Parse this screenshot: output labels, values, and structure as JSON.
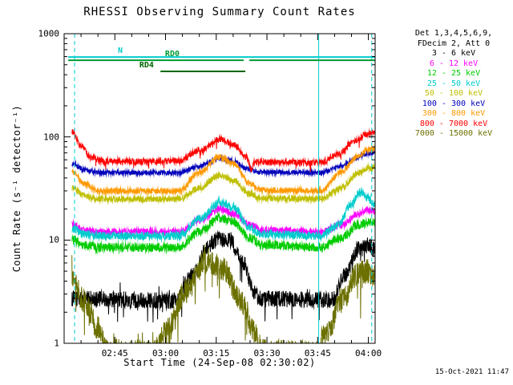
{
  "title": "RHESSI Observing Summary Count Rates",
  "timestamp": "15-Oct-2021 11:47",
  "x_axis": {
    "label": "Start Time (24-Sep-08 02:30:02)",
    "min_minutes": 0,
    "max_minutes": 92,
    "minor_tick_minutes": 5,
    "ticks": [
      {
        "t": 15,
        "label": "02:45"
      },
      {
        "t": 30,
        "label": "03:00"
      },
      {
        "t": 45,
        "label": "03:15"
      },
      {
        "t": 60,
        "label": "03:30"
      },
      {
        "t": 75,
        "label": "03:45"
      },
      {
        "t": 90,
        "label": "04:00"
      }
    ]
  },
  "y_axis": {
    "label": "Count Rate (s⁻¹ detector⁻¹)",
    "scale": "log",
    "min": 1,
    "max": 1000,
    "ticks": [
      {
        "v": 1,
        "label": "1"
      },
      {
        "v": 10,
        "label": "10"
      },
      {
        "v": 100,
        "label": "100"
      },
      {
        "v": 1000,
        "label": "1000"
      }
    ]
  },
  "legend": {
    "header_lines": [
      "Det 1,3,4,5,6,9,",
      "FDecim 2, Att 0"
    ],
    "entries": [
      {
        "label": "3 - 6 keV",
        "color": "#000000"
      },
      {
        "label": "6 - 12 keV",
        "color": "#ff00ff"
      },
      {
        "label": "12 - 25 keV",
        "color": "#00cc00"
      },
      {
        "label": "25 - 50 keV",
        "color": "#00cccc"
      },
      {
        "label": "50 - 100 keV",
        "color": "#bfbf00"
      },
      {
        "label": "100 - 300 keV",
        "color": "#0000bb"
      },
      {
        "label": "300 - 800 keV",
        "color": "#ff9900"
      },
      {
        "label": "800 - 7000 keV",
        "color": "#ff0000"
      },
      {
        "label": "7000 - 15000 keV",
        "color": "#6b7000"
      }
    ]
  },
  "overlays": {
    "flag_bars": [
      {
        "label": "N",
        "color": "#00cccc",
        "value": 594,
        "label_t": 16.6,
        "segments": [
          [
            1.2,
            92
          ]
        ]
      },
      {
        "label": "RD0",
        "color": "#009933",
        "value": 553,
        "label_t": 32,
        "segments": [
          [
            1.2,
            53.1
          ],
          [
            54.8,
            92
          ]
        ]
      },
      {
        "label": "RD4",
        "color": "#006600",
        "value": 431,
        "label_t": 24.4,
        "segments": [
          [
            28.5,
            53.6
          ]
        ]
      }
    ],
    "vlines": [
      {
        "t": 3.1,
        "style": "dashed",
        "color": "#00cccc"
      },
      {
        "t": 75.3,
        "style": "solid",
        "color": "#00cccc"
      },
      {
        "t": 91.0,
        "style": "dashed",
        "color": "#00cccc"
      }
    ]
  },
  "chart_data": {
    "type": "line",
    "title": "RHESSI Observing Summary Count Rates",
    "xlabel": "Start Time (24-Sep-08 02:30:02)",
    "ylabel": "Count Rate (s⁻¹ detector⁻¹)",
    "x_unit": "minutes after 24-Sep-08 02:30:02 UT",
    "y_unit": "counts s⁻¹ detector⁻¹",
    "xlim_minutes": [
      0,
      92
    ],
    "ylim": [
      1,
      1000
    ],
    "y_scale": "log",
    "grid": false,
    "legend_position": "right",
    "series": [
      {
        "name": "3 - 6 keV",
        "color": "#000000",
        "noise": 0.08,
        "spiky": true,
        "points": [
          [
            2.3,
            2.7
          ],
          [
            33,
            2.6
          ],
          [
            38,
            4.5
          ],
          [
            42,
            8
          ],
          [
            45,
            10
          ],
          [
            49,
            10
          ],
          [
            53,
            6
          ],
          [
            56,
            3.2
          ],
          [
            58,
            2.7
          ],
          [
            79,
            2.6
          ],
          [
            83,
            4.5
          ],
          [
            87,
            8
          ],
          [
            90,
            9
          ],
          [
            92,
            8
          ]
        ]
      },
      {
        "name": "6 - 12 keV",
        "color": "#ff00ff",
        "noise": 0.035,
        "spiky": false,
        "points": [
          [
            2.3,
            14
          ],
          [
            6,
            12.5
          ],
          [
            10,
            12
          ],
          [
            34,
            12
          ],
          [
            40,
            15.5
          ],
          [
            46,
            20
          ],
          [
            50,
            18
          ],
          [
            55,
            14
          ],
          [
            58,
            12.5
          ],
          [
            76,
            12
          ],
          [
            82,
            14
          ],
          [
            87,
            18
          ],
          [
            90,
            19.5
          ],
          [
            92,
            19
          ]
        ]
      },
      {
        "name": "12 - 25 keV",
        "color": "#00cc00",
        "noise": 0.045,
        "spiky": false,
        "points": [
          [
            2.3,
            10
          ],
          [
            6,
            9
          ],
          [
            10,
            8.5
          ],
          [
            34,
            8.5
          ],
          [
            40,
            12
          ],
          [
            46,
            16.5
          ],
          [
            50,
            15
          ],
          [
            55,
            10.5
          ],
          [
            58,
            9
          ],
          [
            76,
            8.5
          ],
          [
            82,
            10.5
          ],
          [
            87,
            14
          ],
          [
            90,
            15
          ],
          [
            92,
            15
          ]
        ]
      },
      {
        "name": "25 - 50 keV",
        "color": "#00cccc",
        "noise": 0.04,
        "spiky": false,
        "points": [
          [
            2.3,
            13
          ],
          [
            6,
            11.5
          ],
          [
            10,
            11
          ],
          [
            34,
            11
          ],
          [
            40,
            16
          ],
          [
            46,
            23
          ],
          [
            50,
            21
          ],
          [
            55,
            13
          ],
          [
            58,
            11.5
          ],
          [
            76,
            11
          ],
          [
            81,
            14
          ],
          [
            85,
            22
          ],
          [
            87.5,
            29
          ],
          [
            89.5,
            26
          ],
          [
            92,
            22
          ]
        ]
      },
      {
        "name": "50 - 100 keV",
        "color": "#bfbf00",
        "noise": 0.03,
        "spiky": false,
        "points": [
          [
            2.3,
            33
          ],
          [
            6,
            27
          ],
          [
            10,
            25
          ],
          [
            34,
            25
          ],
          [
            40,
            32
          ],
          [
            46,
            42
          ],
          [
            50,
            38
          ],
          [
            55,
            28
          ],
          [
            58,
            25.5
          ],
          [
            76,
            25
          ],
          [
            82,
            32
          ],
          [
            87,
            44
          ],
          [
            90,
            50
          ],
          [
            92,
            51
          ]
        ]
      },
      {
        "name": "100 - 300 keV",
        "color": "#0000bb",
        "noise": 0.022,
        "spiky": false,
        "points": [
          [
            2.3,
            55
          ],
          [
            6,
            48
          ],
          [
            10,
            45
          ],
          [
            34,
            45
          ],
          [
            40,
            52
          ],
          [
            46,
            62
          ],
          [
            50,
            58
          ],
          [
            55,
            48
          ],
          [
            58,
            45.5
          ],
          [
            76,
            45
          ],
          [
            82,
            52
          ],
          [
            87,
            63
          ],
          [
            90,
            69
          ],
          [
            92,
            71
          ]
        ]
      },
      {
        "name": "300 - 800 keV",
        "color": "#ff9900",
        "noise": 0.028,
        "spiky": false,
        "points": [
          [
            2.3,
            46
          ],
          [
            6,
            35
          ],
          [
            10,
            30
          ],
          [
            34,
            30
          ],
          [
            40,
            45
          ],
          [
            46,
            64
          ],
          [
            50,
            55
          ],
          [
            55,
            35
          ],
          [
            58,
            30.5
          ],
          [
            76,
            30
          ],
          [
            82,
            46
          ],
          [
            87,
            65
          ],
          [
            90,
            75
          ],
          [
            92,
            79
          ]
        ]
      },
      {
        "name": "800 - 7000 keV",
        "color": "#ff0000",
        "noise": 0.028,
        "spiky": true,
        "points": [
          [
            2.3,
            112
          ],
          [
            5,
            82
          ],
          [
            8,
            63
          ],
          [
            12,
            58
          ],
          [
            34,
            58
          ],
          [
            40,
            74
          ],
          [
            46,
            95
          ],
          [
            50,
            85
          ],
          [
            54,
            63
          ],
          [
            55.5,
            48
          ],
          [
            56.2,
            58
          ],
          [
            58,
            57
          ],
          [
            76,
            56
          ],
          [
            81,
            68
          ],
          [
            86,
            90
          ],
          [
            89.5,
            106
          ],
          [
            92,
            112
          ]
        ]
      },
      {
        "name": "7000 - 15000 keV",
        "color": "#6b7000",
        "noise": 0.12,
        "spiky": true,
        "points": [
          [
            2.3,
            4.5
          ],
          [
            6,
            2.5
          ],
          [
            10,
            1.4
          ],
          [
            13,
            0.85
          ],
          [
            26,
            0.8
          ],
          [
            30,
            1.3
          ],
          [
            36,
            3.2
          ],
          [
            42,
            6.3
          ],
          [
            47,
            5.3
          ],
          [
            52,
            2.7
          ],
          [
            56,
            1.3
          ],
          [
            59,
            0.85
          ],
          [
            74,
            0.8
          ],
          [
            78,
            1.3
          ],
          [
            82,
            2.6
          ],
          [
            87,
            4.8
          ],
          [
            90,
            5
          ],
          [
            92,
            4.4
          ]
        ]
      }
    ]
  }
}
